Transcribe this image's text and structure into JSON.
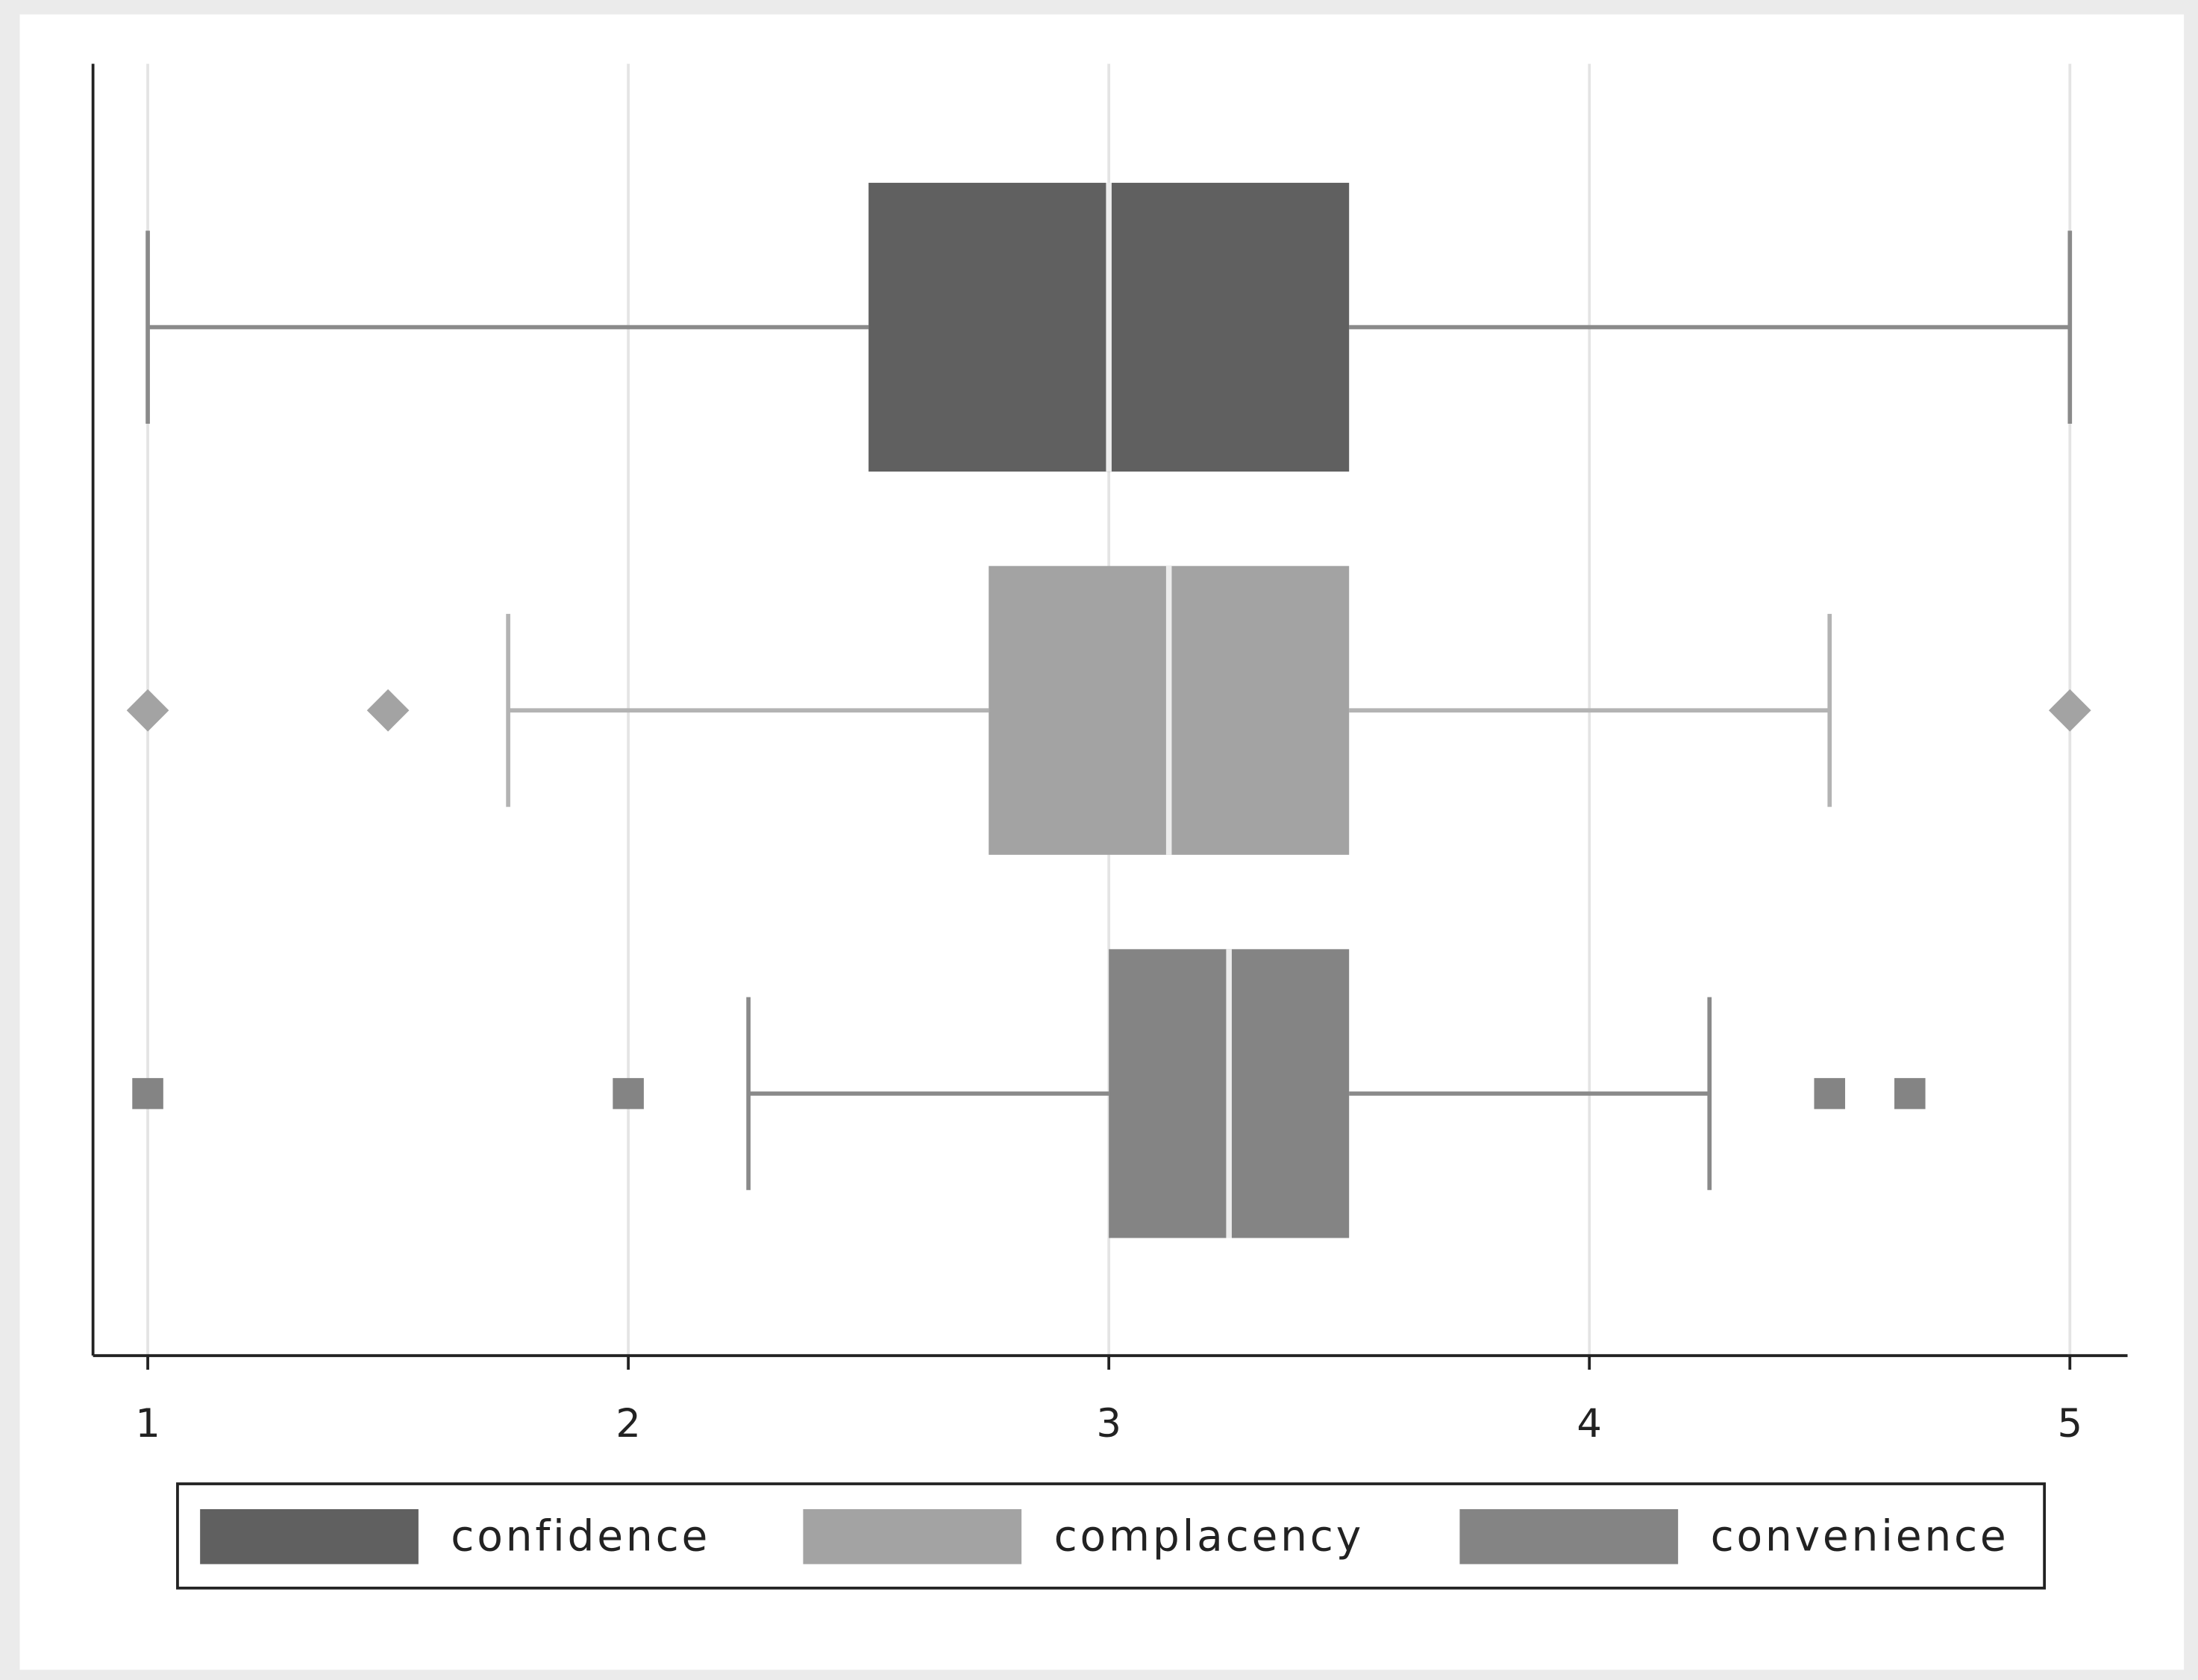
{
  "chart_data": {
    "type": "box",
    "series": [
      {
        "name": "confidence",
        "color": "#606060",
        "whisker_color": "#8a8a8a",
        "marker": "none",
        "low": 1,
        "q1": 2.5,
        "median": 3,
        "q3": 3.5,
        "high": 5,
        "outliers": []
      },
      {
        "name": "complacency",
        "color": "#a3a3a3",
        "whisker_color": "#b3b3b3",
        "marker": "diamond",
        "low": 1.75,
        "q1": 2.75,
        "median": 3.125,
        "q3": 3.5,
        "high": 4.5,
        "outliers": [
          1,
          1.5,
          5
        ]
      },
      {
        "name": "convenience",
        "color": "#848484",
        "whisker_color": "#8a8a8a",
        "marker": "square",
        "low": 2.25,
        "q1": 3,
        "median": 3.25,
        "q3": 3.5,
        "high": 4.25,
        "outliers": [
          1,
          2,
          4.5,
          4.667
        ]
      }
    ],
    "xlim": [
      0.886,
      5.12
    ],
    "xticks": [
      1,
      2,
      3,
      4,
      5
    ],
    "grid": true,
    "legend": "bottom"
  }
}
